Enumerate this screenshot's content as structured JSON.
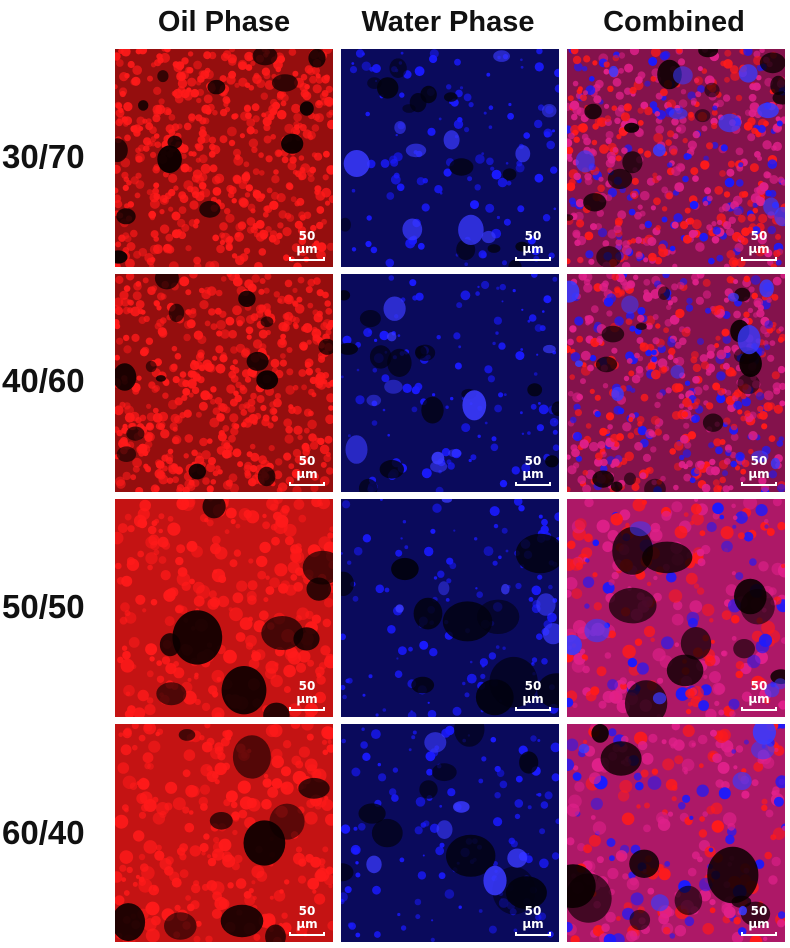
{
  "columns": [
    "Oil Phase",
    "Water Phase",
    "Combined"
  ],
  "rows": [
    {
      "label": "30/70",
      "texture": "fine"
    },
    {
      "label": "40/60",
      "texture": "fine"
    },
    {
      "label": "50/50",
      "texture": "coarse"
    },
    {
      "label": "60/40",
      "texture": "coarse"
    }
  ],
  "scale_bar_label": "50 µm",
  "colors": {
    "oil": "#ff1a1a",
    "water": "#1a1aff",
    "combined": "#e0208a",
    "background": "#000000"
  }
}
